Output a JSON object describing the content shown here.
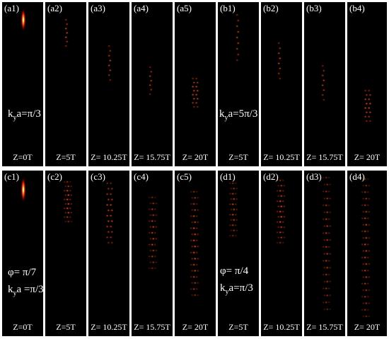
{
  "rows": [
    {
      "panels": [
        {
          "label": "(a1)",
          "time": "Z=0T",
          "annotation_ky": "π/3"
        },
        {
          "label": "(a2)",
          "time": "Z=5T"
        },
        {
          "label": "(a3)",
          "time": "Z= 10.25T"
        },
        {
          "label": "(a4)",
          "time": "Z= 15.75T"
        },
        {
          "label": "(a5)",
          "time": "Z= 20T"
        },
        {
          "label": "(b1)",
          "time": "Z=5T",
          "annotation_ky": "5π/3"
        },
        {
          "label": "(b2)",
          "time": "Z= 10.25T"
        },
        {
          "label": "(b3)",
          "time": "Z= 15.75T"
        },
        {
          "label": "(b4)",
          "time": "Z= 20T"
        }
      ]
    },
    {
      "panels": [
        {
          "label": "(c1)",
          "time": "Z=0T",
          "annotation_phi": "φ= π/7",
          "annotation_ky": "=π/3"
        },
        {
          "label": "(c2)",
          "time": "Z=5T"
        },
        {
          "label": "(c3)",
          "time": "Z= 10.25T"
        },
        {
          "label": "(c4)",
          "time": "Z= 15.75T"
        },
        {
          "label": "(c5)",
          "time": "Z= 20T"
        },
        {
          "label": "(d1)",
          "time": "Z=5T",
          "annotation_phi": "φ= π/4",
          "annotation_ky": "=π/3"
        },
        {
          "label": "(d2)",
          "time": "Z= 10.25T"
        },
        {
          "label": "(d3)",
          "time": "Z= 15.75T"
        },
        {
          "label": "(d4)",
          "time": "Z= 20T"
        }
      ]
    }
  ],
  "ky_prefix": "k",
  "ky_sub": "y",
  "ky_suffix": "a="
}
